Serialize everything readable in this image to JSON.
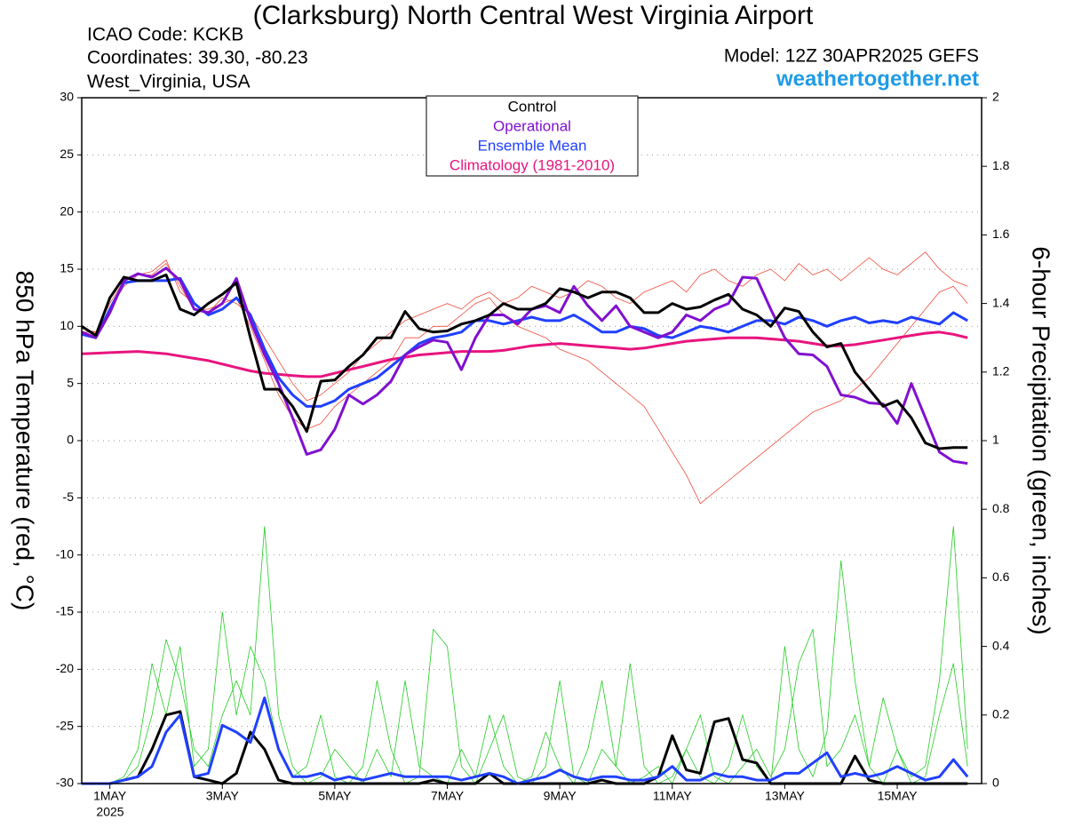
{
  "chart_data": {
    "type": "line",
    "title": "(Clarksburg) North Central West Virginia Airport",
    "info_left": [
      "ICAO Code: KCKB",
      "Coordinates: 39.30, -80.23",
      "West_Virginia, USA"
    ],
    "model": "Model: 12Z 30APR2025 GEFS",
    "website": "weathertogether.net",
    "ylabel": "850 hPa Temperature (red, °C)",
    "y2label": "6-hour Precipitation (green, inches)",
    "x_sublabel": "2025",
    "x": [
      0,
      6,
      12,
      18,
      24,
      30,
      36,
      42,
      48,
      54,
      60,
      66,
      72,
      78,
      84,
      90,
      96,
      102,
      108,
      114,
      120,
      126,
      132,
      138,
      144,
      150,
      156,
      162,
      168,
      174,
      180,
      186,
      192,
      198,
      204,
      210,
      216,
      222,
      228,
      234,
      240,
      246,
      252,
      258,
      264,
      270,
      276,
      282,
      288,
      294,
      300,
      306,
      312,
      318,
      324,
      330,
      336,
      342,
      348,
      354,
      360,
      366,
      372,
      378
    ],
    "xlim": [
      0,
      384
    ],
    "xticks": [
      {
        "value": 12,
        "label": "1MAY"
      },
      {
        "value": 60,
        "label": "3MAY"
      },
      {
        "value": 108,
        "label": "5MAY"
      },
      {
        "value": 156,
        "label": "7MAY"
      },
      {
        "value": 204,
        "label": "9MAY"
      },
      {
        "value": 252,
        "label": "11MAY"
      },
      {
        "value": 300,
        "label": "13MAY"
      },
      {
        "value": 348,
        "label": "15MAY"
      }
    ],
    "ylim": [
      -30,
      30
    ],
    "yticks": [
      -30,
      -25,
      -20,
      -15,
      -10,
      -5,
      0,
      5,
      10,
      15,
      20,
      25,
      30
    ],
    "y2lim": [
      0,
      2
    ],
    "y2ticks": [
      0,
      0.2,
      0.4,
      0.6,
      0.8,
      1,
      1.2,
      1.4,
      1.6,
      1.8,
      2
    ],
    "grid": true,
    "series": [
      {
        "color": "#f04a3a",
        "values": [
          9.5,
          9.5,
          12,
          14,
          14.5,
          14.5,
          15.5,
          13.5,
          11.5,
          11.5,
          12,
          12.5,
          10,
          7,
          4,
          2,
          1,
          1.5,
          3,
          4,
          5,
          6,
          7,
          9,
          9,
          10,
          10,
          11,
          12,
          12.5,
          11,
          10,
          9.5,
          9,
          8,
          7.5,
          7,
          6,
          5,
          4,
          3,
          1,
          -1,
          -3,
          -5.5,
          -4.5,
          -3.5,
          -2.5,
          -1.5,
          -0.5,
          0.5,
          1.5,
          2.5,
          3,
          3.5,
          4.5,
          5.5,
          7,
          8.5,
          10,
          11.5,
          13,
          13.5,
          12
        ]
      },
      {
        "color": "#f04a3a",
        "values": [
          9.8,
          9.5,
          11.5,
          13.5,
          14.5,
          14.8,
          15.8,
          13,
          12,
          11.2,
          12.5,
          12,
          11,
          9,
          7,
          5,
          3.5,
          4,
          5,
          6,
          7.5,
          8.5,
          9.5,
          10.5,
          11,
          11.5,
          12,
          11.5,
          12.5,
          13,
          12,
          12.5,
          13.5,
          13,
          12.5,
          13,
          14,
          13.5,
          12.5,
          12,
          13,
          13.5,
          14,
          13,
          14.5,
          15,
          14,
          13.5,
          14.5,
          15,
          14,
          15.5,
          14.5,
          15,
          14,
          15,
          16,
          15,
          14.5,
          15.5,
          16.5,
          15,
          14,
          13.5
        ]
      },
      {
        "color": "#22cc22",
        "axis": "y2",
        "values": [
          0,
          0,
          0,
          0.01,
          0.05,
          0.2,
          0.42,
          0.3,
          0.1,
          0.05,
          0.2,
          0.3,
          0.2,
          0.75,
          0.2,
          0.05,
          0,
          0.02,
          0.1,
          0.05,
          0,
          0.1,
          0.02,
          0.3,
          0.05,
          0.02,
          0,
          0.1,
          0.02,
          0.2,
          0.05,
          0,
          0.02,
          0.15,
          0.05,
          0,
          0.1,
          0.3,
          0.05,
          0,
          0.02,
          0.05,
          0,
          0.1,
          0.02,
          0,
          0.05,
          0.2,
          0.05,
          0,
          0.4,
          0.1,
          0.02,
          0.15,
          0.65,
          0.3,
          0.05,
          0,
          0.1,
          0.02,
          0.05,
          0.3,
          0.75,
          0.1
        ]
      },
      {
        "color": "#22cc22",
        "axis": "y2",
        "values": [
          0,
          0,
          0,
          0.02,
          0.1,
          0.35,
          0.2,
          0.4,
          0.05,
          0.1,
          0.5,
          0.2,
          0.4,
          0.3,
          0.1,
          0.02,
          0.05,
          0.2,
          0.02,
          0,
          0.05,
          0.3,
          0.1,
          0,
          0.02,
          0.45,
          0.4,
          0.05,
          0,
          0.1,
          0.2,
          0.02,
          0,
          0.05,
          0.3,
          0.02,
          0,
          0.1,
          0.05,
          0.35,
          0.05,
          0,
          0.02,
          0.1,
          0.2,
          0.02,
          0,
          0.05,
          0.1,
          0.02,
          0.1,
          0.35,
          0.45,
          0.05,
          0.1,
          0.2,
          0.05,
          0.25,
          0.1,
          0,
          0.02,
          0.2,
          0.35,
          0.05
        ]
      },
      {
        "color": "#000000",
        "axis": "y2",
        "values": [
          0,
          0,
          0,
          0.01,
          0.02,
          0.1,
          0.2,
          0.21,
          0.02,
          0.01,
          0,
          0.03,
          0.15,
          0.1,
          0.01,
          0,
          0,
          0,
          0,
          0,
          0,
          0,
          0,
          0,
          0,
          0.01,
          0,
          0,
          0,
          0.03,
          0,
          0,
          0,
          0,
          0,
          0,
          0,
          0.01,
          0,
          0,
          0,
          0.02,
          0.14,
          0.04,
          0.03,
          0.18,
          0.19,
          0.07,
          0.06,
          0,
          0,
          0,
          0,
          0,
          0,
          0.08,
          0.01,
          0,
          0,
          0,
          0,
          0,
          0,
          0
        ]
      },
      {
        "color": "#2040ff",
        "axis": "y2",
        "values": [
          0,
          0,
          0,
          0.01,
          0.02,
          0.05,
          0.15,
          0.2,
          0.02,
          0.03,
          0.17,
          0.15,
          0.12,
          0.25,
          0.1,
          0.02,
          0.02,
          0.03,
          0.01,
          0.02,
          0.01,
          0.02,
          0.03,
          0.02,
          0.02,
          0.02,
          0.02,
          0.01,
          0.02,
          0.03,
          0.02,
          0,
          0.01,
          0.02,
          0.04,
          0.02,
          0.01,
          0.02,
          0.02,
          0.01,
          0.01,
          0.02,
          0.05,
          0.01,
          0.01,
          0.03,
          0.02,
          0.02,
          0.01,
          0.01,
          0.03,
          0.03,
          0.06,
          0.09,
          0.02,
          0.03,
          0.02,
          0.03,
          0.05,
          0.03,
          0.01,
          0.02,
          0.07,
          0.02
        ]
      },
      {
        "name": "Control",
        "color": "#000000",
        "values": [
          10,
          9.2,
          12.5,
          14.3,
          14,
          14,
          14.5,
          11.5,
          11,
          12,
          12.8,
          13.8,
          9,
          4.5,
          4.5,
          3,
          0.8,
          5.2,
          5.3,
          6.5,
          7.5,
          9,
          9,
          11.3,
          9.8,
          9.5,
          9.6,
          10.2,
          10.5,
          11,
          12,
          11.5,
          11.5,
          12,
          13.3,
          13,
          12.5,
          13,
          13,
          12.5,
          11.2,
          11.2,
          12,
          11.5,
          11.7,
          12.3,
          12.8,
          11.5,
          11,
          10,
          11.6,
          11.3,
          9.5,
          8.2,
          8.5,
          6,
          4.5,
          3,
          3.5,
          2,
          -0.2,
          -0.7,
          -0.6,
          -0.6
        ]
      },
      {
        "name": "Operational",
        "color": "#8010d0",
        "values": [
          9.5,
          9,
          11.2,
          14,
          14.6,
          14.3,
          15.1,
          14,
          11.5,
          11.2,
          12,
          14.2,
          10.5,
          7.5,
          5,
          2,
          -1.2,
          -0.8,
          1,
          4,
          3.2,
          4,
          5.2,
          7.5,
          8.2,
          8.8,
          8.6,
          6.2,
          9,
          11,
          11,
          10.2,
          11.5,
          11.8,
          11.2,
          13.5,
          11.8,
          10.5,
          11.8,
          10,
          9.5,
          9,
          9.5,
          11,
          10.5,
          11.5,
          12,
          14.3,
          14.2,
          11.5,
          9,
          7.6,
          7.5,
          6.5,
          4,
          3.8,
          3.3,
          3.2,
          1.5,
          5,
          2,
          -1,
          -1.8,
          -2
        ]
      },
      {
        "name": "Ensemble Mean",
        "color": "#2040ff",
        "values": [
          9.3,
          9,
          11.5,
          13.8,
          14,
          14,
          14,
          14.2,
          12,
          11,
          11.5,
          12.5,
          11,
          8,
          5.5,
          4,
          3,
          3,
          3.5,
          4.5,
          5,
          5.5,
          6.5,
          7.5,
          8.5,
          9,
          9.2,
          9.5,
          10.5,
          10.5,
          10.2,
          10.5,
          10.8,
          10.5,
          10.5,
          11,
          10.3,
          9.5,
          9.5,
          10,
          9.8,
          9.2,
          9,
          9.5,
          10,
          9.8,
          9.5,
          10,
          10.5,
          10.5,
          10.2,
          10.8,
          10.5,
          10,
          10.5,
          10.8,
          10.3,
          10.5,
          10.3,
          10.8,
          10.5,
          10.2,
          11.2,
          10.5
        ]
      },
      {
        "name": "Climatology (1981-2010)",
        "color": "#e8147e",
        "values": [
          7.6,
          7.65,
          7.7,
          7.75,
          7.8,
          7.7,
          7.6,
          7.4,
          7.2,
          7.0,
          6.7,
          6.4,
          6.1,
          5.9,
          5.8,
          5.7,
          5.6,
          5.6,
          5.9,
          6.2,
          6.5,
          6.8,
          7.1,
          7.3,
          7.5,
          7.6,
          7.7,
          7.8,
          7.8,
          7.8,
          7.9,
          8.1,
          8.3,
          8.4,
          8.5,
          8.4,
          8.3,
          8.2,
          8.1,
          8.0,
          8.1,
          8.3,
          8.5,
          8.7,
          8.8,
          8.9,
          9.0,
          9.0,
          9.0,
          8.9,
          8.8,
          8.7,
          8.5,
          8.3,
          8.3,
          8.4,
          8.6,
          8.8,
          9.0,
          9.2,
          9.4,
          9.5,
          9.3,
          9.0
        ]
      }
    ]
  }
}
